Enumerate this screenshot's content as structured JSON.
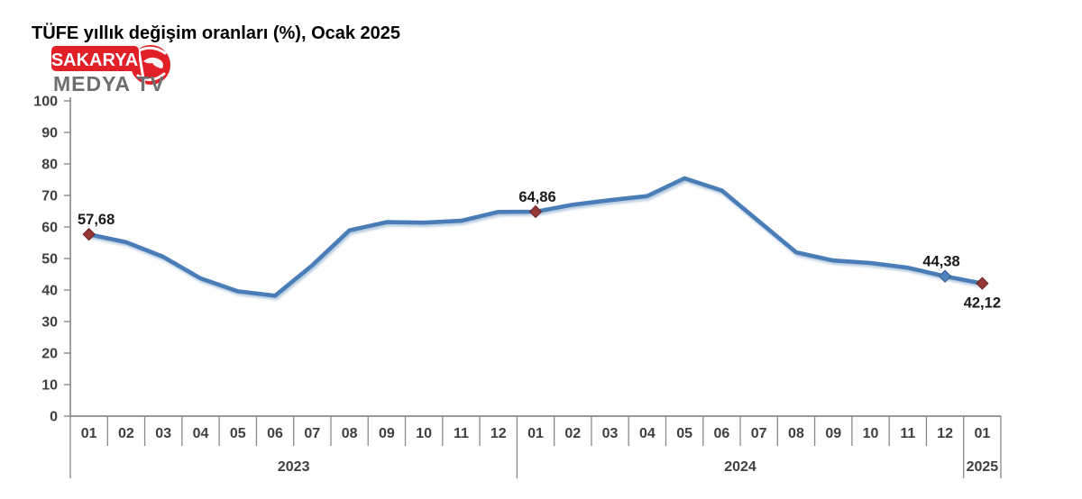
{
  "logo": {
    "badge_text": "SAKARYA",
    "subtitle": "MEDYA TV",
    "badge_color": "#e01f26",
    "subtitle_color": "#6d6e70"
  },
  "chart_data": {
    "type": "line",
    "title": "TÜFE yıllık değişim oranları (%), Ocak 2025",
    "categories": [
      "01",
      "02",
      "03",
      "04",
      "05",
      "06",
      "07",
      "08",
      "09",
      "10",
      "11",
      "12",
      "01",
      "02",
      "03",
      "04",
      "05",
      "06",
      "07",
      "08",
      "09",
      "10",
      "11",
      "12",
      "01"
    ],
    "year_groups": [
      {
        "label": "2023",
        "start": 0,
        "count": 12
      },
      {
        "label": "2024",
        "start": 12,
        "count": 12
      },
      {
        "label": "2025",
        "start": 24,
        "count": 1
      }
    ],
    "series": [
      {
        "name": "TÜFE yıllık değişim oranı (%)",
        "values": [
          57.68,
          55.18,
          50.51,
          43.68,
          39.59,
          38.21,
          47.83,
          58.94,
          61.53,
          61.36,
          61.98,
          64.77,
          64.86,
          67.07,
          68.5,
          69.8,
          75.45,
          71.6,
          61.78,
          51.97,
          49.38,
          48.58,
          47.09,
          44.38,
          42.12
        ]
      }
    ],
    "labeled_points": [
      {
        "index": 0,
        "label": "57,68",
        "position": "above",
        "dx": 8,
        "marker_color": "#953735",
        "marker_stroke": "#6a2422"
      },
      {
        "index": 12,
        "label": "64,86",
        "position": "above",
        "dx": 2,
        "marker_color": "#953735",
        "marker_stroke": "#6a2422"
      },
      {
        "index": 23,
        "label": "44,38",
        "position": "above",
        "dx": -4,
        "marker_color": "#4f81bd",
        "marker_stroke": "#2f5a8b"
      },
      {
        "index": 24,
        "label": "42,12",
        "position": "below",
        "dx": 0,
        "marker_color": "#953735",
        "marker_stroke": "#6a2422"
      }
    ],
    "ylim": [
      0,
      100
    ],
    "ytick_step": 10,
    "ytick_labels": [
      "0",
      "10",
      "20",
      "30",
      "40",
      "50",
      "60",
      "70",
      "80",
      "90",
      "100"
    ],
    "grid": false,
    "legend": false,
    "line_color": "#4a7db8",
    "axis_color": "#898989",
    "label_color": "#3f3f3f",
    "data_label_color": "#1a1a1a"
  }
}
